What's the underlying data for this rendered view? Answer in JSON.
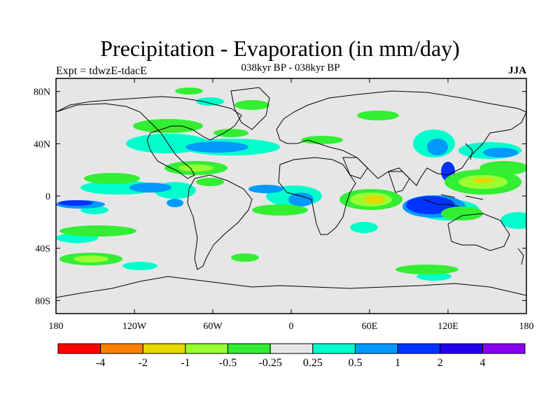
{
  "title": "Precipitation - Evaporation (in mm/day)",
  "subtitle": "038kyr BP - 038kyr BP",
  "left_label": "Expt = tdwzE-tdacE",
  "right_label": "JJA",
  "map": {
    "lon_ticks": [
      "180",
      "120W",
      "60W",
      "0",
      "60E",
      "120E",
      "180"
    ],
    "lat_ticks": [
      "80N",
      "40N",
      "0",
      "40S",
      "80S"
    ],
    "land_color": "#e6e6e6",
    "coast_color": "#000000"
  },
  "colorbar": {
    "colors": [
      "#ff0000",
      "#ff8000",
      "#e6d800",
      "#99ff33",
      "#33ee33",
      "#e6e6e6",
      "#00ffcc",
      "#0099ff",
      "#0033ff",
      "#2200ee",
      "#8800ee"
    ],
    "labels": [
      "-4",
      "-2",
      "-1",
      "-0.5",
      "-0.25",
      "0.25",
      "0.5",
      "1",
      "2",
      "4"
    ]
  },
  "legend_colors": {
    "wet_strong": "#0022cc",
    "wet": "#0099ff",
    "wet_weak": "#00ffcc",
    "dry_weak": "#33ee33",
    "dry": "#99ff33",
    "dry_strong": "#e6d800"
  }
}
